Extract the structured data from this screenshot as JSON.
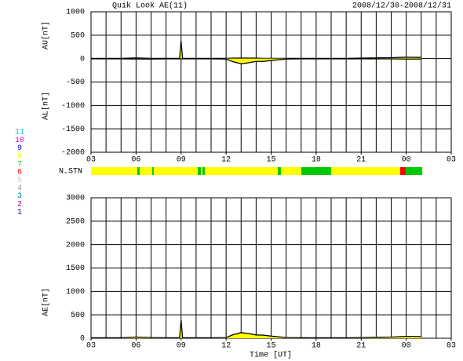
{
  "title": "Quik Look AE(11)",
  "date_range": "2008/12/30-2008/12/31",
  "legend": [
    {
      "value": 11,
      "color": "#00c8c8"
    },
    {
      "value": 10,
      "color": "#ff00ff"
    },
    {
      "value": 9,
      "color": "#0000c8"
    },
    {
      "value": 8,
      "color": "#ffff00"
    },
    {
      "value": 7,
      "color": "#00c800"
    },
    {
      "value": 6,
      "color": "#ff0000"
    },
    {
      "value": 5,
      "color": "#c8c8c8"
    },
    {
      "value": 4,
      "color": "#969696"
    },
    {
      "value": 3,
      "color": "#008c8c"
    },
    {
      "value": 2,
      "color": "#8c008c"
    },
    {
      "value": 1,
      "color": "#00008c"
    }
  ],
  "chart_data": [
    {
      "type": "line",
      "x": [
        3,
        4,
        5,
        6,
        7,
        8,
        8.9,
        9,
        9.1,
        10,
        11,
        12,
        12.5,
        13,
        13.5,
        14,
        14.5,
        15,
        16,
        17,
        18,
        19,
        20,
        21,
        22,
        23,
        24,
        25
      ],
      "series": [
        {
          "name": "AU[nT]",
          "color": "#000000",
          "fill": "#ffff00",
          "values": [
            5,
            5,
            5,
            15,
            5,
            5,
            5,
            380,
            5,
            5,
            5,
            5,
            10,
            10,
            10,
            10,
            5,
            5,
            5,
            5,
            5,
            5,
            5,
            10,
            15,
            20,
            30,
            25
          ]
        },
        {
          "name": "AL[nT]",
          "color": "#000000",
          "fill": "#ffff00",
          "values": [
            -5,
            -5,
            -5,
            -10,
            -10,
            -5,
            -5,
            -5,
            -5,
            -5,
            -5,
            -10,
            -70,
            -110,
            -90,
            -60,
            -60,
            -40,
            -10,
            -5,
            -5,
            -5,
            -5,
            -5,
            -5,
            -5,
            -10,
            -10
          ]
        }
      ],
      "xlim": [
        3,
        27
      ],
      "xticks": [
        {
          "value": 3,
          "label": "03"
        },
        {
          "value": 6,
          "label": "06"
        },
        {
          "value": 9,
          "label": "09"
        },
        12,
        15,
        18,
        21,
        {
          "value": 24,
          "label": "00"
        },
        {
          "value": 27,
          "label": "03"
        }
      ],
      "x_grid_step": 1,
      "ylim": [
        -2000,
        1000
      ],
      "yticks": [
        1000,
        500,
        0,
        -500,
        -1000,
        -1500,
        -2000
      ],
      "grid": true
    },
    {
      "type": "strip",
      "name": "N.STN",
      "edges": [
        3,
        6.08,
        6.24,
        7.08,
        7.18,
        10.11,
        10.32,
        10.42,
        10.58,
        15.44,
        15.65,
        17.01,
        19.0,
        23.6,
        23.97,
        25.07
      ],
      "values": [
        8,
        7,
        8,
        7,
        8,
        7,
        8,
        7,
        8,
        7,
        8,
        7,
        8,
        6,
        7
      ]
    },
    {
      "type": "area",
      "x": [
        3,
        4,
        5,
        6,
        7,
        8,
        8.9,
        9,
        9.1,
        10,
        11,
        12,
        12.5,
        13,
        13.5,
        14,
        14.5,
        15,
        16,
        17,
        18,
        19,
        20,
        21,
        22,
        23,
        24,
        25
      ],
      "series": [
        {
          "name": "AE[nT]",
          "color": "#000000",
          "fill": "#ffff00",
          "values": [
            10,
            10,
            10,
            25,
            15,
            10,
            10,
            385,
            10,
            10,
            10,
            15,
            80,
            120,
            100,
            70,
            65,
            45,
            15,
            10,
            10,
            10,
            10,
            15,
            20,
            25,
            40,
            35
          ]
        }
      ],
      "xlim": [
        3,
        27
      ],
      "xticks": [
        {
          "value": 3,
          "label": "03"
        },
        {
          "value": 6,
          "label": "06"
        },
        {
          "value": 9,
          "label": "09"
        },
        12,
        15,
        18,
        21,
        {
          "value": 24,
          "label": "00"
        },
        {
          "value": 27,
          "label": "03"
        }
      ],
      "x_grid_step": 1,
      "xlabel": "Time [UT]",
      "ylim": [
        0,
        3000
      ],
      "yticks": [
        3000,
        2500,
        2000,
        1500,
        1000,
        500,
        0
      ],
      "grid": true
    }
  ]
}
